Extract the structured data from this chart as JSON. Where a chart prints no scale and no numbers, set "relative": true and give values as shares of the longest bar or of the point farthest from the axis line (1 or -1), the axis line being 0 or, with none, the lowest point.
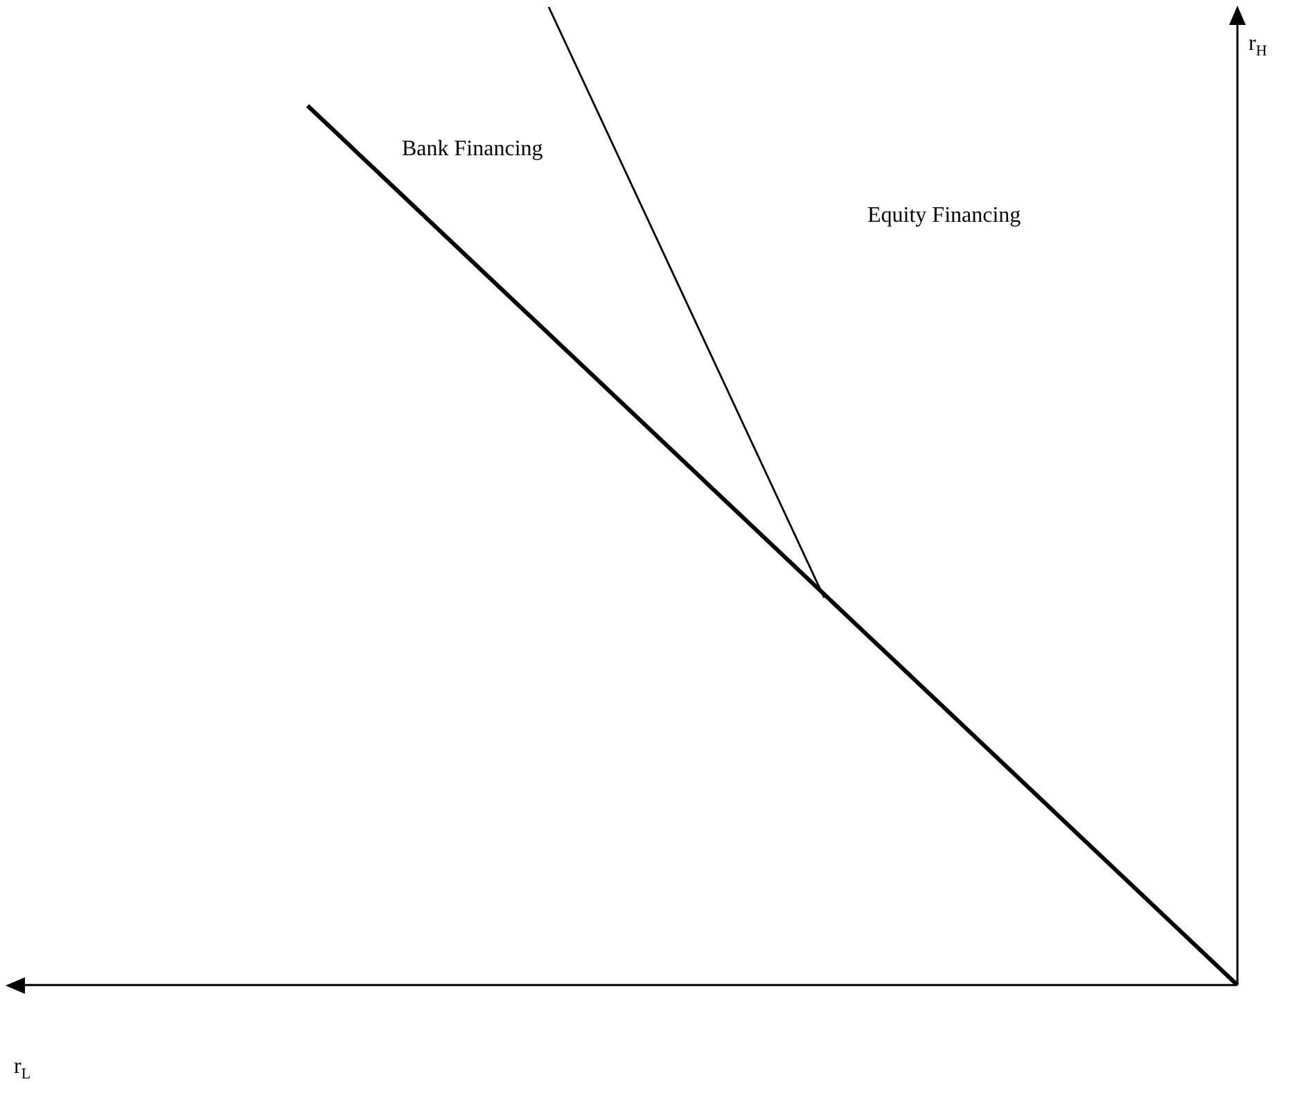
{
  "chart_data": {
    "type": "line",
    "ylabel": "r$_{H}$",
    "annotations": [
      "Bank Financing",
      "Equity Financing",
      "r$_{L}$"
    ],
    "relative": true,
    "grid": false,
    "legend": false,
    "marker": "none",
    "line_style": "solid",
    "categories": [
      null,
      null,
      null,
      null,
      null,
      null,
      null,
      null,
      null,
      null,
      null,
      null,
      null,
      null,
      null,
      null,
      null,
      null,
      null,
      null,
      null,
      null,
      null,
      null,
      null,
      null,
      null,
      null
    ],
    "series": [
      {
        "color": "#000000",
        "values": [
          0.899,
          null,
          null,
          null,
          null,
          null,
          null,
          null,
          null,
          null,
          null,
          null,
          null,
          null,
          null,
          null,
          null,
          null,
          null,
          null,
          null,
          null,
          null,
          null,
          null,
          null,
          null,
          0
        ]
      },
      {
        "color": "#000000",
        "values": [
          null,
          null,
          null,
          null,
          null,
          null,
          null,
          1,
          null,
          null,
          null,
          null,
          null,
          null,
          null,
          0.396,
          null,
          null,
          null,
          null,
          null,
          null,
          null,
          null,
          null,
          null,
          null,
          null
        ]
      }
    ]
  }
}
